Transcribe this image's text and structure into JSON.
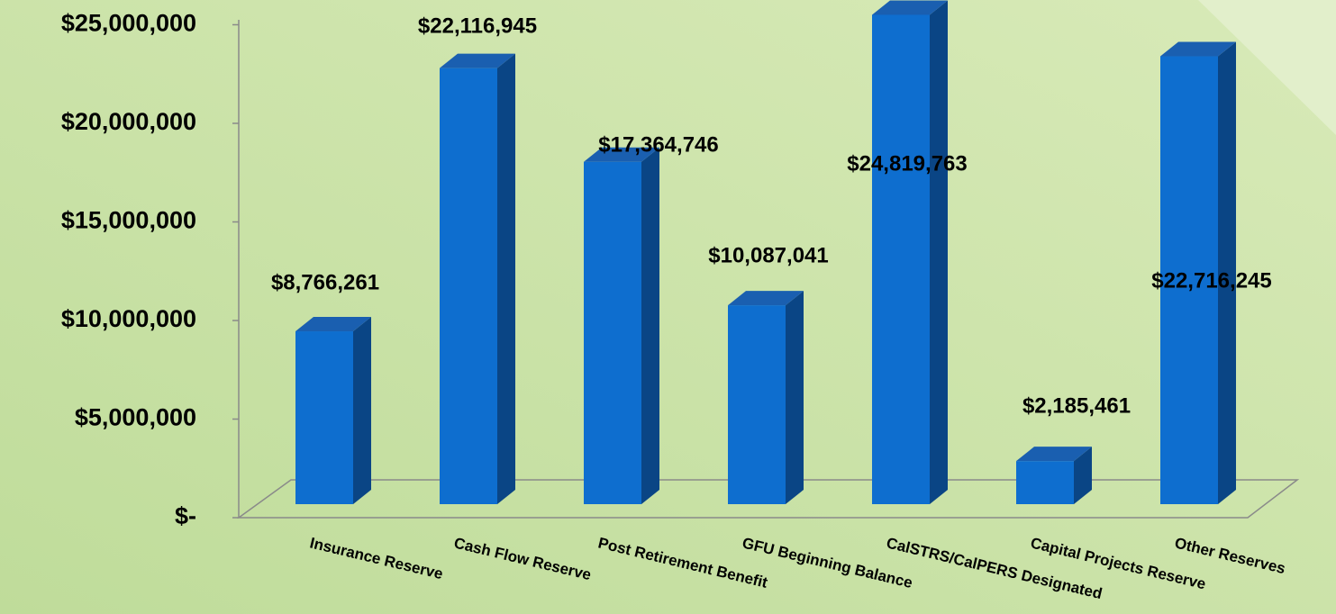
{
  "chart_data": {
    "type": "bar3d",
    "categories": [
      "Insurance Reserve",
      "Cash Flow Reserve",
      "Post Retirement Benefit",
      "GFU Beginning Balance",
      "CalSTRS/CalPERS Designated",
      "Capital Projects Reserve",
      "Other Reserves"
    ],
    "values": [
      8766261,
      22116945,
      17364746,
      10087041,
      24819763,
      2185461,
      22716245
    ],
    "value_labels": [
      "$8,766,261",
      "$22,116,945",
      "$17,364,746",
      "$10,087,041",
      "$24,819,763",
      "$2,185,461",
      "$22,716,245"
    ],
    "color": "#0e6ecf",
    "ylim": [
      0,
      25000000
    ],
    "yticks": [
      {
        "value": 0,
        "label": "$-"
      },
      {
        "value": 5000000,
        "label": "$5,000,000"
      },
      {
        "value": 10000000,
        "label": "$10,000,000"
      },
      {
        "value": 15000000,
        "label": "$15,000,000"
      },
      {
        "value": 20000000,
        "label": "$20,000,000"
      },
      {
        "value": 25000000,
        "label": "$25,000,000"
      }
    ]
  }
}
